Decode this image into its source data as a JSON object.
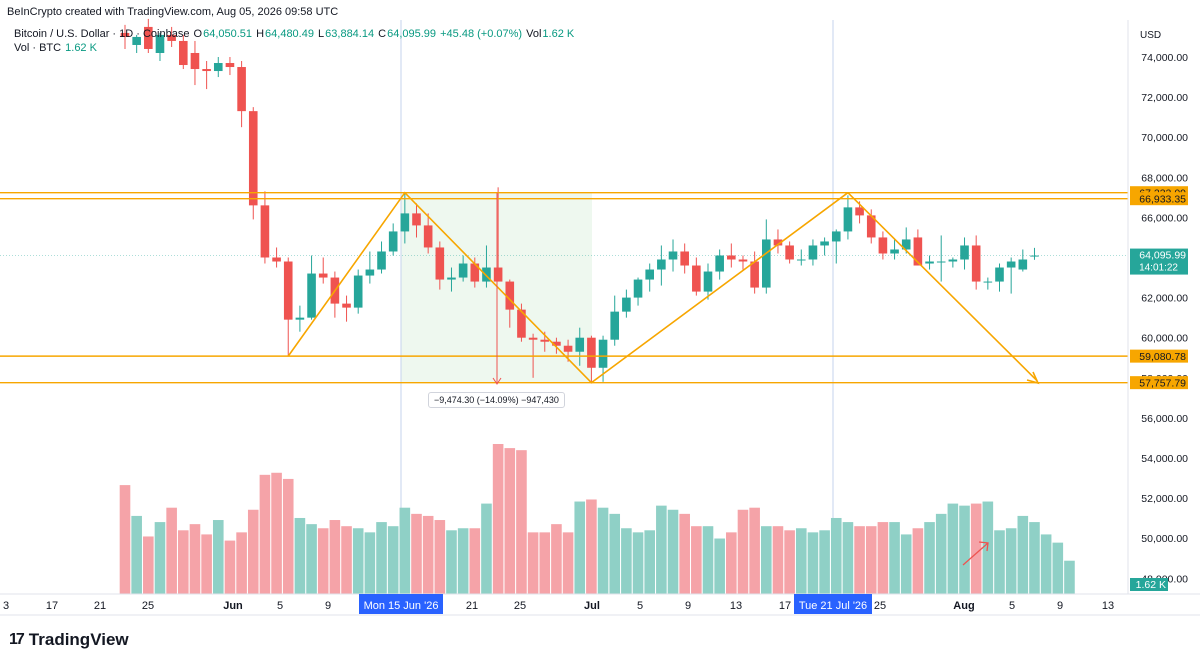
{
  "header": {
    "created": "BeInCrypto created with TradingView.com, Aug 05, 2026 09:58 UTC",
    "symbol": "Bitcoin / U.S. Dollar · 1D · Coinbase",
    "o_label": "O",
    "o_value": "64,050.51",
    "h_label": "H",
    "h_value": "64,480.49",
    "l_label": "L",
    "l_value": "63,884.14",
    "c_label": "C",
    "c_value": "64,095.99",
    "change": "+45.48 (+0.07%)",
    "vol_label": "Vol",
    "vol_value": "1.62 K",
    "vol_series_label": "Vol · BTC",
    "vol_series_value": "1.62 K"
  },
  "price_axis": {
    "currency": "USD",
    "ticks": [
      "74,000.00",
      "72,000.00",
      "70,000.00",
      "68,000.00",
      "66,000.00",
      "64,000.00",
      "62,000.00",
      "60,000.00",
      "58,000.00",
      "56,000.00",
      "54,000.00",
      "52,000.00",
      "50,000.00",
      "48,000.00"
    ],
    "price_tag": "64,095.99",
    "countdown": "14:01:22",
    "vol_tag": "1.62 K",
    "level_tags": [
      "67,232.09",
      "66,933.35",
      "59,080.78",
      "57,757.79"
    ]
  },
  "time_axis": {
    "ticks": [
      "3",
      "17",
      "21",
      "25",
      "Jun",
      "5",
      "9",
      "Mon 15 Jun '26",
      "21",
      "25",
      "Jul",
      "5",
      "9",
      "13",
      "17",
      "Tue 21 Jul '26",
      "25",
      "Aug",
      "5",
      "9",
      "13"
    ]
  },
  "measure_label": "−9,474.30 (−14.09%) −947,430",
  "brand": {
    "name": "TradingView",
    "mark": "17"
  },
  "colors": {
    "up": "#26a69a",
    "down": "#ef5350",
    "vol_up": "#8fd0c6",
    "vol_down": "#f5a3a8",
    "levels": "#f7a600",
    "highlight": "#2962ff"
  },
  "chart_data": {
    "type": "candlestick",
    "title": "Bitcoin / U.S. Dollar · 1D · Coinbase",
    "ylabel": "USD",
    "ylim": [
      46500,
      75500
    ],
    "horizontal_levels": [
      67232.09,
      66933.35,
      59080.78,
      57757.79
    ],
    "last_price": 64095.99,
    "candles": [
      {
        "o": 75200,
        "h": 75600,
        "l": 74400,
        "c": 75000
      },
      {
        "o": 74600,
        "h": 75100,
        "l": 74200,
        "c": 75000
      },
      {
        "o": 75500,
        "h": 75900,
        "l": 74200,
        "c": 74400
      },
      {
        "o": 74200,
        "h": 75200,
        "l": 73800,
        "c": 75100
      },
      {
        "o": 75100,
        "h": 75500,
        "l": 74500,
        "c": 74800
      },
      {
        "o": 74800,
        "h": 75100,
        "l": 73400,
        "c": 73600
      },
      {
        "o": 74200,
        "h": 74800,
        "l": 72600,
        "c": 73400
      },
      {
        "o": 73400,
        "h": 73800,
        "l": 72400,
        "c": 73300
      },
      {
        "o": 73300,
        "h": 74000,
        "l": 73000,
        "c": 73700
      },
      {
        "o": 73700,
        "h": 74000,
        "l": 73100,
        "c": 73500
      },
      {
        "o": 73500,
        "h": 73800,
        "l": 70500,
        "c": 71300
      },
      {
        "o": 71300,
        "h": 71500,
        "l": 65900,
        "c": 66600
      },
      {
        "o": 66600,
        "h": 67300,
        "l": 63700,
        "c": 64000
      },
      {
        "o": 64000,
        "h": 64500,
        "l": 63500,
        "c": 63800
      },
      {
        "o": 63800,
        "h": 64000,
        "l": 59100,
        "c": 60900
      },
      {
        "o": 60900,
        "h": 61600,
        "l": 60300,
        "c": 61000
      },
      {
        "o": 61000,
        "h": 64100,
        "l": 60900,
        "c": 63200
      },
      {
        "o": 63200,
        "h": 64000,
        "l": 62700,
        "c": 63000
      },
      {
        "o": 63000,
        "h": 63300,
        "l": 61000,
        "c": 61700
      },
      {
        "o": 61700,
        "h": 62100,
        "l": 60800,
        "c": 61500
      },
      {
        "o": 61500,
        "h": 63400,
        "l": 61200,
        "c": 63100
      },
      {
        "o": 63100,
        "h": 64300,
        "l": 62700,
        "c": 63400
      },
      {
        "o": 63400,
        "h": 64800,
        "l": 63200,
        "c": 64300
      },
      {
        "o": 64300,
        "h": 65700,
        "l": 64100,
        "c": 65300
      },
      {
        "o": 65300,
        "h": 67200,
        "l": 64700,
        "c": 66200
      },
      {
        "o": 66200,
        "h": 66700,
        "l": 65000,
        "c": 65600
      },
      {
        "o": 65600,
        "h": 66200,
        "l": 64200,
        "c": 64500
      },
      {
        "o": 64500,
        "h": 64800,
        "l": 62400,
        "c": 62900
      },
      {
        "o": 62900,
        "h": 63500,
        "l": 62300,
        "c": 63000
      },
      {
        "o": 63000,
        "h": 64100,
        "l": 62800,
        "c": 63700
      },
      {
        "o": 63700,
        "h": 64000,
        "l": 62500,
        "c": 62800
      },
      {
        "o": 62800,
        "h": 64600,
        "l": 62500,
        "c": 63500
      },
      {
        "o": 63500,
        "h": 67500,
        "l": 62800,
        "c": 62800
      },
      {
        "o": 62800,
        "h": 62900,
        "l": 60500,
        "c": 61400
      },
      {
        "o": 61400,
        "h": 61700,
        "l": 59800,
        "c": 60000
      },
      {
        "o": 60000,
        "h": 60200,
        "l": 58000,
        "c": 59900
      },
      {
        "o": 59900,
        "h": 60300,
        "l": 59300,
        "c": 59800
      },
      {
        "o": 59800,
        "h": 60000,
        "l": 59200,
        "c": 59600
      },
      {
        "o": 59600,
        "h": 59900,
        "l": 58800,
        "c": 59300
      },
      {
        "o": 59300,
        "h": 60500,
        "l": 58600,
        "c": 60000
      },
      {
        "o": 60000,
        "h": 60100,
        "l": 57800,
        "c": 58500
      },
      {
        "o": 58500,
        "h": 60100,
        "l": 57800,
        "c": 59900
      },
      {
        "o": 59900,
        "h": 62100,
        "l": 59600,
        "c": 61300
      },
      {
        "o": 61300,
        "h": 62400,
        "l": 61000,
        "c": 62000
      },
      {
        "o": 62000,
        "h": 63000,
        "l": 61600,
        "c": 62900
      },
      {
        "o": 62900,
        "h": 63700,
        "l": 62300,
        "c": 63400
      },
      {
        "o": 63400,
        "h": 64600,
        "l": 62600,
        "c": 63900
      },
      {
        "o": 63900,
        "h": 64900,
        "l": 63300,
        "c": 64300
      },
      {
        "o": 64300,
        "h": 64700,
        "l": 63200,
        "c": 63600
      },
      {
        "o": 63600,
        "h": 64000,
        "l": 62100,
        "c": 62300
      },
      {
        "o": 62300,
        "h": 63700,
        "l": 61900,
        "c": 63300
      },
      {
        "o": 63300,
        "h": 64400,
        "l": 62900,
        "c": 64100
      },
      {
        "o": 64100,
        "h": 64700,
        "l": 63500,
        "c": 63900
      },
      {
        "o": 63900,
        "h": 64100,
        "l": 63400,
        "c": 63800
      },
      {
        "o": 63800,
        "h": 64300,
        "l": 62200,
        "c": 62500
      },
      {
        "o": 62500,
        "h": 65900,
        "l": 62200,
        "c": 64900
      },
      {
        "o": 64900,
        "h": 65400,
        "l": 64200,
        "c": 64600
      },
      {
        "o": 64600,
        "h": 64800,
        "l": 63700,
        "c": 63900
      },
      {
        "o": 63900,
        "h": 64400,
        "l": 63600,
        "c": 63900
      },
      {
        "o": 63900,
        "h": 64900,
        "l": 63600,
        "c": 64600
      },
      {
        "o": 64600,
        "h": 65000,
        "l": 64100,
        "c": 64800
      },
      {
        "o": 64800,
        "h": 65400,
        "l": 63700,
        "c": 65300
      },
      {
        "o": 65300,
        "h": 67100,
        "l": 64900,
        "c": 66500
      },
      {
        "o": 66500,
        "h": 66800,
        "l": 65700,
        "c": 66100
      },
      {
        "o": 66100,
        "h": 66400,
        "l": 64700,
        "c": 65000
      },
      {
        "o": 65000,
        "h": 65300,
        "l": 63900,
        "c": 64200
      },
      {
        "o": 64200,
        "h": 64900,
        "l": 63900,
        "c": 64400
      },
      {
        "o": 64400,
        "h": 65500,
        "l": 64200,
        "c": 64900
      },
      {
        "o": 65000,
        "h": 65400,
        "l": 63600,
        "c": 63600
      },
      {
        "o": 63700,
        "h": 64100,
        "l": 63400,
        "c": 63800
      },
      {
        "o": 63800,
        "h": 65100,
        "l": 62800,
        "c": 63800
      },
      {
        "o": 63800,
        "h": 64000,
        "l": 63500,
        "c": 63900
      },
      {
        "o": 63900,
        "h": 65000,
        "l": 63400,
        "c": 64600
      },
      {
        "o": 64600,
        "h": 65100,
        "l": 62400,
        "c": 62800
      },
      {
        "o": 62800,
        "h": 63000,
        "l": 62400,
        "c": 62800
      },
      {
        "o": 62800,
        "h": 63700,
        "l": 62300,
        "c": 63500
      },
      {
        "o": 63500,
        "h": 64000,
        "l": 62200,
        "c": 63800
      },
      {
        "o": 63400,
        "h": 64400,
        "l": 63300,
        "c": 63900
      },
      {
        "o": 64050.51,
        "h": 64480.49,
        "l": 63884.14,
        "c": 64095.99
      }
    ],
    "volume": [
      5.3,
      3.8,
      2.8,
      3.5,
      4.2,
      3.1,
      3.4,
      2.9,
      3.6,
      2.6,
      3.0,
      4.1,
      5.8,
      5.9,
      5.6,
      3.7,
      3.4,
      3.2,
      3.6,
      3.3,
      3.2,
      3.0,
      3.5,
      3.3,
      4.2,
      3.9,
      3.8,
      3.6,
      3.1,
      3.2,
      3.2,
      4.4,
      7.3,
      7.1,
      7.0,
      3.0,
      3.0,
      3.4,
      3.0,
      4.5,
      4.6,
      4.2,
      3.9,
      3.2,
      3.0,
      3.1,
      4.3,
      4.1,
      3.9,
      3.3,
      3.3,
      2.7,
      3.0,
      4.1,
      4.2,
      3.3,
      3.3,
      3.1,
      3.2,
      3.0,
      3.1,
      3.7,
      3.5,
      3.3,
      3.3,
      3.5,
      3.5,
      2.9,
      3.2,
      3.5,
      3.9,
      4.4,
      4.3,
      4.4,
      4.5,
      3.1,
      3.2,
      3.8,
      3.5,
      2.9,
      2.5,
      1.62
    ]
  }
}
